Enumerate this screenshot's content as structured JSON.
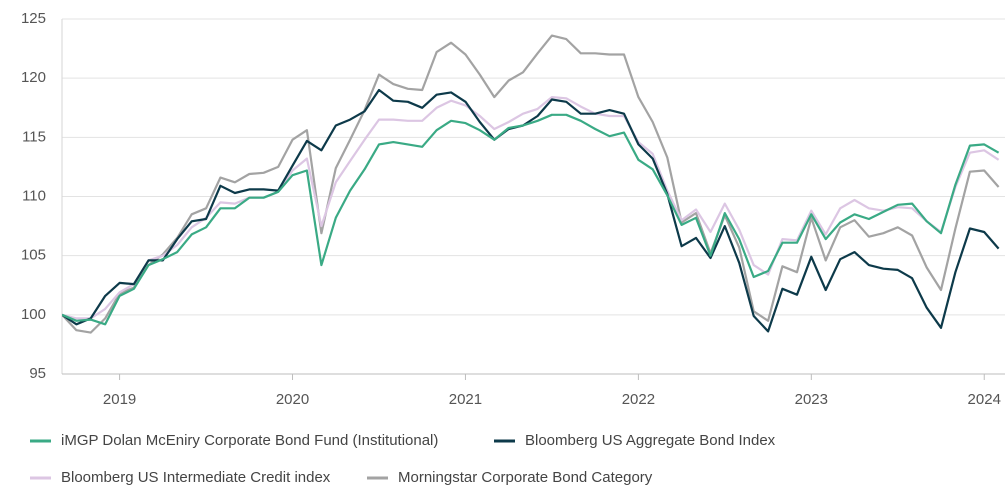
{
  "chart_data": {
    "type": "line",
    "x": [
      2018.667,
      2018.75,
      2018.833,
      2018.917,
      2019,
      2019.083,
      2019.167,
      2019.25,
      2019.333,
      2019.417,
      2019.5,
      2019.583,
      2019.667,
      2019.75,
      2019.833,
      2019.917,
      2020,
      2020.083,
      2020.167,
      2020.25,
      2020.333,
      2020.417,
      2020.5,
      2020.583,
      2020.667,
      2020.75,
      2020.833,
      2020.917,
      2021,
      2021.083,
      2021.167,
      2021.25,
      2021.333,
      2021.417,
      2021.5,
      2021.583,
      2021.667,
      2021.75,
      2021.833,
      2021.917,
      2022,
      2022.083,
      2022.167,
      2022.25,
      2022.333,
      2022.417,
      2022.5,
      2022.583,
      2022.667,
      2022.75,
      2022.833,
      2022.917,
      2023,
      2023.083,
      2023.167,
      2023.25,
      2023.333,
      2023.417,
      2023.5,
      2023.583,
      2023.667,
      2023.75,
      2023.833,
      2023.917,
      2024,
      2024.083
    ],
    "series": [
      {
        "name": "iMGP Dolan McEniry Corporate Bond Fund (Institutional)",
        "color": "#3aaa85",
        "values": [
          100,
          99.5,
          99.6,
          99.2,
          101.6,
          102.2,
          104.2,
          104.7,
          105.3,
          106.8,
          107.4,
          109,
          109,
          109.9,
          109.9,
          110.4,
          111.8,
          112.2,
          104.2,
          108.2,
          110.5,
          112.3,
          114.4,
          114.6,
          114.4,
          114.2,
          115.6,
          116.4,
          116.2,
          115.6,
          114.8,
          115.8,
          116,
          116.4,
          116.9,
          116.9,
          116.4,
          115.7,
          115.1,
          115.4,
          113.1,
          112.3,
          110.1,
          107.6,
          108.2,
          105,
          108.6,
          106.4,
          103.2,
          103.7,
          106.1,
          106.1,
          108.5,
          106.4,
          107.8,
          108.5,
          108.1,
          108.7,
          109.3,
          109.4,
          107.9,
          106.9,
          111,
          114.3,
          114.4,
          113.7
        ]
      },
      {
        "name": "Bloomberg US Aggregate Bond Index",
        "color": "#0d3a4a",
        "values": [
          100,
          99.2,
          99.7,
          101.6,
          102.7,
          102.6,
          104.6,
          104.6,
          106.4,
          107.9,
          108.1,
          110.9,
          110.3,
          110.6,
          110.6,
          110.5,
          112.6,
          114.7,
          113.9,
          116,
          116.5,
          117.2,
          119,
          118.1,
          118,
          117.5,
          118.6,
          118.8,
          118,
          116.3,
          114.8,
          115.7,
          116,
          116.8,
          118.2,
          118,
          117,
          117,
          117.3,
          117,
          114.4,
          113.2,
          110.2,
          105.8,
          106.5,
          104.8,
          107.5,
          104.4,
          99.9,
          98.6,
          102.2,
          101.7,
          104.9,
          102.1,
          104.7,
          105.3,
          104.2,
          103.9,
          103.8,
          103.1,
          100.6,
          98.9,
          103.6,
          107.3,
          107,
          105.6
        ]
      },
      {
        "name": "Bloomberg US Intermediate Credit index",
        "color": "#dcc6e3",
        "values": [
          100,
          99.7,
          99.7,
          100.5,
          101.9,
          102.6,
          104.6,
          105,
          105.9,
          107.4,
          108.2,
          109.5,
          109.4,
          109.9,
          109.9,
          110.4,
          112.2,
          113.2,
          107.5,
          111.2,
          113,
          114.8,
          116.5,
          116.5,
          116.4,
          116.4,
          117.5,
          118.1,
          117.7,
          116.8,
          115.7,
          116.3,
          117,
          117.4,
          118.4,
          118.3,
          117.6,
          117,
          116.8,
          116.8,
          114.6,
          113.6,
          110.5,
          108,
          108.9,
          107,
          109.4,
          107.2,
          104.2,
          103.4,
          106.4,
          106.3,
          108.8,
          106.8,
          109,
          109.7,
          109,
          108.8,
          109.1,
          109,
          107.9,
          107,
          110.8,
          113.7,
          113.9,
          113.1
        ]
      },
      {
        "name": "Morningstar Corporate Bond Category",
        "color": "#a3a3a3",
        "values": [
          100,
          98.7,
          98.5,
          99.7,
          101.8,
          102.3,
          104.2,
          105.1,
          106.5,
          108.5,
          109,
          111.6,
          111.2,
          111.9,
          112,
          112.5,
          114.8,
          115.6,
          106.9,
          112.4,
          114.8,
          117.3,
          120.3,
          119.5,
          119.1,
          119,
          122.2,
          123,
          122,
          120.3,
          118.4,
          119.8,
          120.5,
          122.1,
          123.6,
          123.3,
          122.1,
          122.1,
          122,
          122,
          118.4,
          116.3,
          113.3,
          107.8,
          108.6,
          105.2,
          108.4,
          105.7,
          100.3,
          99.5,
          104.1,
          103.6,
          108.2,
          104.6,
          107.4,
          108,
          106.6,
          106.9,
          107.4,
          106.7,
          104,
          102.1,
          107.3,
          112.1,
          112.2,
          110.8
        ]
      }
    ],
    "xlim": [
      2018.667,
      2024.12
    ],
    "xticks": [
      2019,
      2020,
      2021,
      2022,
      2023,
      2024
    ],
    "ylim": [
      95,
      125
    ],
    "yticks": [
      95,
      100,
      105,
      110,
      115,
      120,
      125
    ],
    "grid": true
  }
}
